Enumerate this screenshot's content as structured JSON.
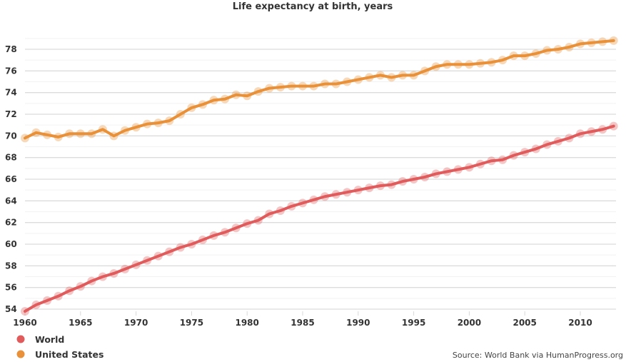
{
  "chart_data": {
    "type": "line",
    "title": "Life expectancy at birth, years",
    "xlabel": "",
    "ylabel": "",
    "source": "Source: World Bank via HumanProgress.org",
    "x": [
      1960,
      1961,
      1962,
      1963,
      1964,
      1965,
      1966,
      1967,
      1968,
      1969,
      1970,
      1971,
      1972,
      1973,
      1974,
      1975,
      1976,
      1977,
      1978,
      1979,
      1980,
      1981,
      1982,
      1983,
      1984,
      1985,
      1986,
      1987,
      1988,
      1989,
      1990,
      1991,
      1992,
      1993,
      1994,
      1995,
      1996,
      1997,
      1998,
      1999,
      2000,
      2001,
      2002,
      2003,
      2004,
      2005,
      2006,
      2007,
      2008,
      2009,
      2010,
      2011,
      2012,
      2013
    ],
    "xlim": [
      1960,
      2013
    ],
    "ylim": [
      54,
      79
    ],
    "x_ticks": [
      "1960",
      "1965",
      "1970",
      "1975",
      "1980",
      "1985",
      "1990",
      "1995",
      "2000",
      "2005",
      "2010"
    ],
    "y_ticks": [
      "54",
      "56",
      "58",
      "60",
      "62",
      "64",
      "66",
      "68",
      "70",
      "72",
      "74",
      "76",
      "78"
    ],
    "grid": true,
    "legend_position": "bottom-left",
    "series": [
      {
        "name": "World",
        "color": "#e05c5c",
        "values": [
          53.8,
          54.4,
          54.8,
          55.2,
          55.7,
          56.1,
          56.6,
          57.0,
          57.3,
          57.7,
          58.1,
          58.5,
          58.9,
          59.3,
          59.7,
          60.0,
          60.4,
          60.8,
          61.1,
          61.5,
          61.9,
          62.2,
          62.8,
          63.1,
          63.5,
          63.8,
          64.1,
          64.4,
          64.6,
          64.8,
          65.0,
          65.2,
          65.4,
          65.5,
          65.8,
          66.0,
          66.2,
          66.5,
          66.7,
          66.9,
          67.1,
          67.4,
          67.7,
          67.8,
          68.2,
          68.5,
          68.8,
          69.2,
          69.5,
          69.8,
          70.2,
          70.4,
          70.6,
          70.9
        ]
      },
      {
        "name": "United States",
        "color": "#e8913a",
        "values": [
          69.8,
          70.3,
          70.1,
          69.9,
          70.2,
          70.2,
          70.2,
          70.6,
          70.0,
          70.5,
          70.8,
          71.1,
          71.2,
          71.4,
          72.0,
          72.6,
          72.9,
          73.3,
          73.4,
          73.8,
          73.7,
          74.1,
          74.4,
          74.5,
          74.6,
          74.6,
          74.6,
          74.8,
          74.8,
          75.0,
          75.2,
          75.4,
          75.6,
          75.4,
          75.6,
          75.6,
          76.0,
          76.4,
          76.6,
          76.6,
          76.6,
          76.7,
          76.8,
          77.0,
          77.4,
          77.4,
          77.6,
          77.9,
          78.0,
          78.2,
          78.5,
          78.6,
          78.7,
          78.8
        ]
      }
    ]
  }
}
